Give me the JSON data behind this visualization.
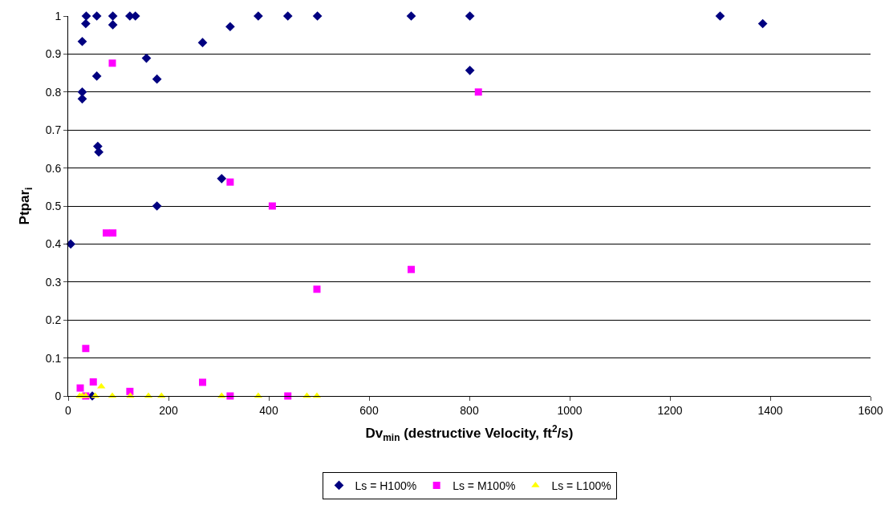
{
  "chart_data": {
    "type": "scatter",
    "xlabel": "Dv$_{min}$ (destructive Velocity, ft$^{2}$/s)",
    "ylabel": "Ptpar$_{i}$",
    "xlim": [
      0,
      1600
    ],
    "xticks": [
      0,
      200,
      400,
      600,
      800,
      1000,
      1200,
      1400,
      1600
    ],
    "ylim": [
      0,
      1
    ],
    "yticks": [
      0,
      0.1,
      0.2,
      0.3,
      0.4,
      0.5,
      0.6,
      0.7,
      0.8,
      0.9,
      1
    ],
    "grid": "y",
    "legend": "bottom",
    "series": [
      {
        "name": "Ls = H100%",
        "color": "#000080",
        "marker": "diamond",
        "x": [
          36,
          57,
          89,
          123,
          134,
          379,
          438,
          497,
          684,
          801,
          1300,
          35,
          89,
          28,
          268,
          323,
          156,
          57,
          177,
          28,
          28,
          59,
          61,
          306,
          177,
          5,
          48,
          801,
          1385
        ],
        "values": [
          1,
          1,
          1,
          1,
          1,
          1,
          1,
          1,
          1,
          1,
          1,
          0.98,
          0.977,
          0.933,
          0.93,
          0.972,
          0.889,
          0.842,
          0.834,
          0.8,
          0.782,
          0.657,
          0.642,
          0.572,
          0.5,
          0.4,
          0,
          0.857,
          0.98
        ]
      },
      {
        "name": "Ls = M100%",
        "color": "#ff00ff",
        "marker": "square",
        "x": [
          88,
          323,
          76,
          89,
          407,
          496,
          35,
          24,
          50,
          123,
          268,
          323,
          438,
          35,
          818,
          684
        ],
        "values": [
          0.876,
          0.563,
          0.429,
          0.429,
          0.5,
          0.281,
          0.125,
          0.021,
          0.037,
          0.012,
          0.036,
          0,
          0,
          0,
          0.8,
          0.333
        ]
      },
      {
        "name": "Ls = L100%",
        "color": "#ffff00",
        "marker": "triangle",
        "x": [
          23,
          28,
          35,
          54,
          66,
          88,
          124,
          160,
          186,
          306,
          379,
          476,
          496
        ],
        "values": [
          0,
          0,
          0,
          0,
          0.025,
          0,
          0,
          0,
          0,
          0,
          0,
          0,
          0
        ]
      }
    ]
  }
}
